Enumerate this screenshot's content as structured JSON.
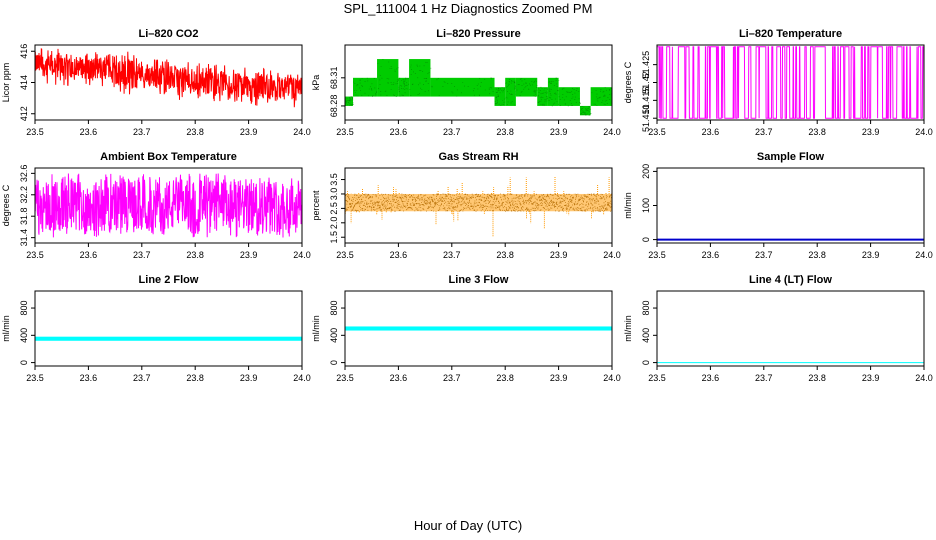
{
  "page": {
    "title": "SPL_111004  1 Hz Diagnostics Zoomed PM",
    "xlabel": "Hour of Day (UTC)"
  },
  "chart_data": [
    {
      "id": "co2",
      "type": "line",
      "title": "Li–820 CO2",
      "ylabel": "Licor ppm",
      "color": "#ff0000",
      "xlim": [
        23.5,
        24.0
      ],
      "ylim": [
        411.6,
        416.4
      ],
      "x_ticks": [
        23.5,
        23.6,
        23.7,
        23.8,
        23.9,
        24.0
      ],
      "x_tick_labels": [
        "23.5",
        "23.6",
        "23.7",
        "23.8",
        "23.9",
        "24.0"
      ],
      "y_ticks": [
        412,
        414,
        416
      ],
      "y_tick_labels": [
        "412",
        "414",
        "416"
      ],
      "x": [
        23.5,
        23.525,
        23.55,
        23.575,
        23.6,
        23.625,
        23.65,
        23.675,
        23.7,
        23.725,
        23.75,
        23.775,
        23.8,
        23.825,
        23.85,
        23.875,
        23.9,
        23.925,
        23.95,
        23.975,
        24.0
      ],
      "y_upper": [
        416.3,
        416.1,
        416.3,
        416.0,
        415.9,
        416.1,
        415.7,
        416.0,
        415.5,
        415.6,
        415.5,
        415.4,
        415.2,
        415.4,
        415.1,
        415.2,
        414.9,
        415.1,
        414.8,
        414.7,
        414.7
      ],
      "y_lower": [
        414.2,
        414.0,
        413.9,
        414.2,
        413.8,
        413.7,
        413.6,
        413.0,
        413.4,
        413.3,
        413.2,
        413.0,
        413.1,
        412.9,
        412.8,
        412.7,
        412.7,
        412.5,
        412.6,
        412.4,
        412.3
      ],
      "render": "noise"
    },
    {
      "id": "pressure",
      "type": "step",
      "title": "Li–820 Pressure",
      "ylabel": "kPa",
      "color": "#00cc00",
      "xlim": [
        23.5,
        24.0
      ],
      "ylim": [
        68.265,
        68.345
      ],
      "x_ticks": [
        23.5,
        23.6,
        23.7,
        23.8,
        23.9,
        24.0
      ],
      "x_tick_labels": [
        "23.5",
        "23.6",
        "23.7",
        "23.8",
        "23.9",
        "24.0"
      ],
      "y_ticks": [
        68.28,
        68.31
      ],
      "y_tick_labels": [
        "68.28",
        "68.31"
      ],
      "levels": [
        68.27,
        68.28,
        68.29,
        68.3,
        68.31,
        68.32,
        68.33
      ],
      "segments": [
        {
          "x0": 23.5,
          "x1": 23.515,
          "lo": 68.28,
          "hi": 68.29
        },
        {
          "x0": 23.515,
          "x1": 23.56,
          "lo": 68.29,
          "hi": 68.31
        },
        {
          "x0": 23.56,
          "x1": 23.6,
          "lo": 68.29,
          "hi": 68.33
        },
        {
          "x0": 23.6,
          "x1": 23.62,
          "lo": 68.29,
          "hi": 68.31
        },
        {
          "x0": 23.62,
          "x1": 23.66,
          "lo": 68.29,
          "hi": 68.33
        },
        {
          "x0": 23.66,
          "x1": 23.78,
          "lo": 68.29,
          "hi": 68.31
        },
        {
          "x0": 23.78,
          "x1": 23.8,
          "lo": 68.28,
          "hi": 68.3
        },
        {
          "x0": 23.8,
          "x1": 23.82,
          "lo": 68.28,
          "hi": 68.31
        },
        {
          "x0": 23.82,
          "x1": 23.86,
          "lo": 68.29,
          "hi": 68.31
        },
        {
          "x0": 23.86,
          "x1": 23.88,
          "lo": 68.28,
          "hi": 68.3
        },
        {
          "x0": 23.88,
          "x1": 23.9,
          "lo": 68.28,
          "hi": 68.31
        },
        {
          "x0": 23.9,
          "x1": 23.94,
          "lo": 68.28,
          "hi": 68.3
        },
        {
          "x0": 23.94,
          "x1": 23.96,
          "lo": 68.27,
          "hi": 68.28
        },
        {
          "x0": 23.96,
          "x1": 24.0,
          "lo": 68.28,
          "hi": 68.3
        }
      ]
    },
    {
      "id": "temperature",
      "type": "line",
      "title": "Li–820 Temperature",
      "ylabel": "degrees C",
      "color": "#ff00ff",
      "xlim": [
        23.5,
        24.0
      ],
      "ylim": [
        51.4095,
        51.4305
      ],
      "x_ticks": [
        23.5,
        23.6,
        23.7,
        23.8,
        23.9,
        24.0
      ],
      "x_tick_labels": [
        "23.5",
        "23.6",
        "23.7",
        "23.8",
        "23.9",
        "24.0"
      ],
      "y_ticks": [
        51.41,
        51.415,
        51.42,
        51.425
      ],
      "y_tick_labels": [
        "51.410",
        "51.415",
        "51.42",
        "51.425"
      ],
      "low_level": 51.41,
      "high_level": 51.43,
      "render": "bistable"
    },
    {
      "id": "ambient",
      "type": "line",
      "title": "Ambient Box Temperature",
      "ylabel": "degrees C",
      "color": "#ff00ff",
      "xlim": [
        23.5,
        24.0
      ],
      "ylim": [
        31.3,
        32.7
      ],
      "x_ticks": [
        23.5,
        23.6,
        23.7,
        23.8,
        23.9,
        24.0
      ],
      "x_tick_labels": [
        "23.5",
        "23.6",
        "23.7",
        "23.8",
        "23.9",
        "24.0"
      ],
      "y_ticks": [
        31.4,
        31.8,
        32.2,
        32.6
      ],
      "y_tick_labels": [
        "31.4",
        "31.8",
        "32.2",
        "32.6"
      ],
      "center": 32.0,
      "band": [
        31.5,
        32.5
      ],
      "render": "noise_band"
    },
    {
      "id": "rh",
      "type": "scatter",
      "title": "Gas Stream RH",
      "ylabel": "percent",
      "color": "#ff9900",
      "xlim": [
        23.5,
        24.0
      ],
      "ylim": [
        1.3,
        3.9
      ],
      "x_ticks": [
        23.5,
        23.6,
        23.7,
        23.8,
        23.9,
        24.0
      ],
      "x_tick_labels": [
        "23.5",
        "23.6",
        "23.7",
        "23.8",
        "23.9",
        "24.0"
      ],
      "y_ticks": [
        1.5,
        2.0,
        2.5,
        3.0,
        3.5
      ],
      "y_tick_labels": [
        "1.5",
        "2.0",
        "2.5",
        "3.0",
        "3.5"
      ],
      "center": 2.7,
      "band": [
        2.4,
        3.0
      ],
      "spike_max": 3.8,
      "spike_min": 1.4,
      "render": "dots"
    },
    {
      "id": "sample_flow",
      "type": "line",
      "title": "Sample Flow",
      "ylabel": "ml/min",
      "color": "#0000cc",
      "xlim": [
        23.5,
        24.0
      ],
      "ylim": [
        -10,
        210
      ],
      "x_ticks": [
        23.5,
        23.6,
        23.7,
        23.8,
        23.9,
        24.0
      ],
      "x_tick_labels": [
        "23.5",
        "23.6",
        "23.7",
        "23.8",
        "23.9",
        "24.0"
      ],
      "y_ticks": [
        0,
        100,
        200
      ],
      "y_tick_labels": [
        "0",
        "100",
        "200"
      ],
      "value": 0,
      "render": "flat"
    },
    {
      "id": "line2",
      "type": "line",
      "title": "Line 2 Flow",
      "ylabel": "ml/min",
      "color": "#00ffff",
      "xlim": [
        23.5,
        24.0
      ],
      "ylim": [
        -50,
        1050
      ],
      "x_ticks": [
        23.5,
        23.6,
        23.7,
        23.8,
        23.9,
        24.0
      ],
      "x_tick_labels": [
        "23.5",
        "23.6",
        "23.7",
        "23.8",
        "23.9",
        "24.0"
      ],
      "y_ticks": [
        0,
        400,
        800
      ],
      "y_tick_labels": [
        "0",
        "400",
        "800"
      ],
      "value": 350,
      "spread": 30,
      "render": "flat"
    },
    {
      "id": "line3",
      "type": "line",
      "title": "Line 3 Flow",
      "ylabel": "ml/min",
      "color": "#00ffff",
      "xlim": [
        23.5,
        24.0
      ],
      "ylim": [
        -50,
        1050
      ],
      "x_ticks": [
        23.5,
        23.6,
        23.7,
        23.8,
        23.9,
        24.0
      ],
      "x_tick_labels": [
        "23.5",
        "23.6",
        "23.7",
        "23.8",
        "23.9",
        "24.0"
      ],
      "y_ticks": [
        0,
        400,
        800
      ],
      "y_tick_labels": [
        "0",
        "400",
        "800"
      ],
      "value": 500,
      "spread": 30,
      "render": "flat"
    },
    {
      "id": "line4",
      "type": "line",
      "title": "Line 4 (LT) Flow",
      "ylabel": "ml/min",
      "color": "#00ffff",
      "xlim": [
        23.5,
        24.0
      ],
      "ylim": [
        -50,
        1050
      ],
      "x_ticks": [
        23.5,
        23.6,
        23.7,
        23.8,
        23.9,
        24.0
      ],
      "x_tick_labels": [
        "23.5",
        "23.6",
        "23.7",
        "23.8",
        "23.9",
        "24.0"
      ],
      "y_ticks": [
        0,
        400,
        800
      ],
      "y_tick_labels": [
        "0",
        "400",
        "800"
      ],
      "value": 0,
      "spread": 0,
      "render": "flat"
    }
  ]
}
